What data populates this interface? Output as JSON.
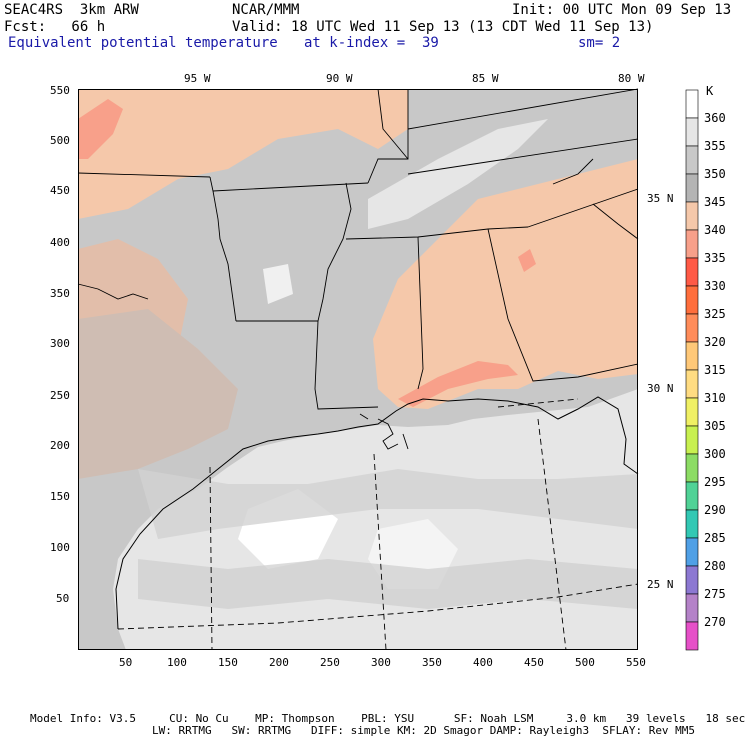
{
  "header": {
    "model": "SEAC4RS  3km ARW",
    "org": "NCAR/MMM",
    "init": "Init: 00 UTC Mon 09 Sep 13",
    "fcst": "Fcst:   66 h",
    "valid": "Valid: 18 UTC Wed 11 Sep 13 (13 CDT Wed 11 Sep 13)",
    "field": "Equivalent potential temperature",
    "level": "at k-index =  39",
    "smooth": "sm= 2"
  },
  "lon_labels": [
    "95 W",
    "90 W",
    "85 W",
    "80 W"
  ],
  "lat_labels": [
    "35 N",
    "30 N",
    "25 N"
  ],
  "y_ticks": [
    "550",
    "500",
    "450",
    "400",
    "350",
    "300",
    "250",
    "200",
    "150",
    "100",
    "50"
  ],
  "x_ticks": [
    "50",
    "100",
    "150",
    "200",
    "250",
    "300",
    "350",
    "400",
    "450",
    "500",
    "550"
  ],
  "legend": {
    "unit": "K",
    "levels": [
      "360",
      "355",
      "350",
      "345",
      "340",
      "335",
      "330",
      "325",
      "320",
      "315",
      "310",
      "305",
      "300",
      "295",
      "290",
      "285",
      "280",
      "275",
      "270"
    ],
    "colors": [
      "#ffffff",
      "#e6e6e6",
      "#c8c8c8",
      "#b4b4b4",
      "#f5c8aa",
      "#f8a08a",
      "#ff5a46",
      "#ff6e3c",
      "#ff8c5a",
      "#ffc878",
      "#ffdc82",
      "#f0f064",
      "#c8f050",
      "#8cdc64",
      "#50d296",
      "#32c8b4",
      "#50a0e6",
      "#8c78d2",
      "#b482c8",
      "#e650c8"
    ]
  },
  "footer": {
    "line1": "Model Info: V3.5     CU: No Cu    MP: Thompson    PBL: YSU      SF: Noah LSM     3.0 km   39 levels   18 sec",
    "line2": "LW: RRTMG   SW: RRTMG   DIFF: simple KM: 2D Smagor DAMP: Rayleigh3  SFLAY: Rev MM5"
  }
}
